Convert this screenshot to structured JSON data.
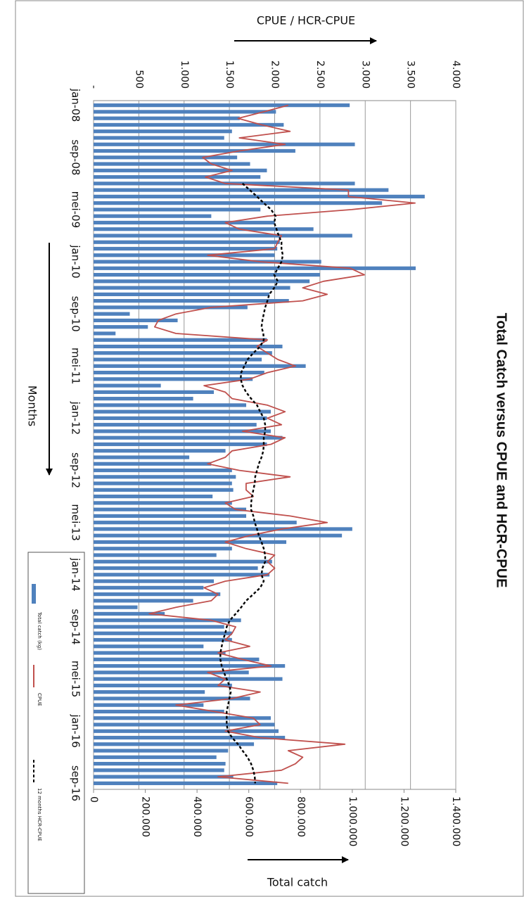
{
  "chart_data": {
    "type": "bar",
    "orientation": "horizontal",
    "title": "Total Catch versus CPUE and HCR-CPUE",
    "x_label": "Months",
    "y_label": "Total catch",
    "y2_label": "CPUE / HCR-CPUE",
    "categories": [
      "jan-08",
      null,
      null,
      null,
      null,
      null,
      null,
      null,
      "sep-08",
      null,
      null,
      null,
      null,
      null,
      null,
      null,
      "mei-09",
      null,
      null,
      null,
      null,
      null,
      null,
      null,
      "jan-10",
      null,
      null,
      null,
      null,
      null,
      null,
      null,
      "sep-10",
      null,
      null,
      null,
      null,
      null,
      null,
      null,
      "mei-11",
      null,
      null,
      null,
      null,
      null,
      null,
      null,
      "jan-12",
      null,
      null,
      null,
      null,
      null,
      null,
      null,
      "sep-12",
      null,
      null,
      null,
      null,
      null,
      null,
      null,
      "mei-13",
      null,
      null,
      null,
      null,
      null,
      null,
      null,
      "jan-14",
      null,
      null,
      null,
      null,
      null,
      null,
      null,
      "sep-14",
      null,
      null,
      null,
      null,
      null,
      null,
      null,
      "mei-15",
      null,
      null,
      null,
      null,
      null,
      null,
      null,
      "jan-16",
      null,
      null,
      null,
      null,
      null,
      null,
      null,
      "sep-16"
    ],
    "ylim": [
      0,
      1400000
    ],
    "yticks": [
      0,
      {
        "value": 200000,
        "label": "200.000"
      },
      {
        "value": 400000,
        "label": "400.000"
      },
      {
        "value": 600000,
        "label": "600.000"
      },
      {
        "value": 800000,
        "label": "800.000"
      },
      {
        "value": 1000000,
        "label": "1.000.000"
      },
      {
        "value": 1200000,
        "label": "1.200.000"
      },
      {
        "value": 1400000,
        "label": "1.400.000"
      }
    ],
    "y2lim": [
      0,
      4000
    ],
    "y2ticks": [
      {
        "value": 0,
        "label": "-"
      },
      500,
      {
        "value": 1000,
        "label": "1.000"
      },
      {
        "value": 1500,
        "label": "1.500"
      },
      {
        "value": 2000,
        "label": "2.000"
      },
      {
        "value": 2500,
        "label": "2.500"
      },
      {
        "value": 3000,
        "label": "3.000"
      },
      {
        "value": 3500,
        "label": "3.500"
      },
      {
        "value": 4000,
        "label": "4.000"
      }
    ],
    "grid": true,
    "legend": "bottom-left",
    "series": [
      {
        "name": "Total catch (kg)",
        "type": "bar",
        "color": "#4f81bd",
        "values": [
          990000,
          705000,
          565000,
          735000,
          535000,
          505000,
          1010000,
          780000,
          555000,
          605000,
          670000,
          645000,
          1010000,
          1140000,
          1280000,
          1115000,
          645000,
          455000,
          700000,
          850000,
          1000000,
          720000,
          710000,
          700000,
          880000,
          1245000,
          875000,
          835000,
          760000,
          680000,
          755000,
          595000,
          140000,
          325000,
          210000,
          85000,
          670000,
          730000,
          690000,
          650000,
          820000,
          660000,
          615000,
          260000,
          465000,
          385000,
          590000,
          685000,
          670000,
          630000,
          685000,
          730000,
          670000,
          510000,
          370000,
          455000,
          535000,
          550000,
          535000,
          540000,
          460000,
          535000,
          590000,
          590000,
          785000,
          1000000,
          960000,
          745000,
          535000,
          475000,
          690000,
          635000,
          680000,
          465000,
          425000,
          490000,
          385000,
          170000,
          275000,
          570000,
          505000,
          535000,
          535000,
          425000,
          510000,
          640000,
          740000,
          600000,
          730000,
          535000,
          430000,
          605000,
          425000,
          505000,
          685000,
          700000,
          715000,
          740000,
          620000,
          520000,
          475000,
          510000,
          505000,
          540000,
          710000
        ]
      },
      {
        "name": "CPUE",
        "type": "line",
        "axis": "y2",
        "color": "#c0504d",
        "values": [
          2150,
          1880,
          1595,
          1855,
          2170,
          1610,
          2115,
          1610,
          1205,
          1300,
          1530,
          1235,
          1455,
          2815,
          2815,
          3550,
          2850,
          1920,
          1455,
          1610,
          2075,
          2035,
          2000,
          1260,
          1840,
          2835,
          2990,
          2540,
          2310,
          2580,
          2310,
          1300,
          910,
          715,
          675,
          910,
          1920,
          1805,
          1920,
          2035,
          2230,
          1920,
          1725,
          1220,
          1455,
          1530,
          1920,
          2115,
          1920,
          2075,
          1645,
          2115,
          1960,
          1530,
          1455,
          1260,
          1610,
          2170,
          1685,
          1685,
          1765,
          1455,
          1570,
          2170,
          2580,
          2075,
          1725,
          1455,
          1685,
          2000,
          1920,
          2000,
          1920,
          1455,
          1220,
          1375,
          1300,
          910,
          615,
          1300,
          1570,
          1530,
          1455,
          1725,
          1375,
          1645,
          1960,
          1260,
          1455,
          1375,
          1840,
          1530,
          910,
          1335,
          1765,
          1840,
          1455,
          1840,
          2775,
          2150,
          2310,
          2230,
          2075,
          1375,
          2150
        ]
      },
      {
        "name": "12 months HCR-CPUE",
        "type": "line",
        "axis": "y2",
        "color": "#000000",
        "dashed": true,
        "values": [
          null,
          null,
          null,
          null,
          null,
          null,
          null,
          null,
          null,
          null,
          null,
          null,
          1645,
          1725,
          1805,
          1880,
          1960,
          2010,
          1995,
          2020,
          2045,
          2075,
          2075,
          2090,
          2075,
          2035,
          1995,
          2035,
          1995,
          1940,
          1920,
          1895,
          1880,
          1865,
          1855,
          1875,
          1880,
          1840,
          1765,
          1700,
          1665,
          1630,
          1625,
          1645,
          1685,
          1740,
          1805,
          1840,
          1880,
          1895,
          1895,
          1880,
          1880,
          1875,
          1855,
          1825,
          1805,
          1785,
          1780,
          1765,
          1750,
          1740,
          1740,
          1765,
          1780,
          1805,
          1825,
          1855,
          1880,
          1895,
          1895,
          1865,
          1855,
          1880,
          1840,
          1765,
          1685,
          1630,
          1570,
          1505,
          1470,
          1455,
          1430,
          1415,
          1400,
          1400,
          1415,
          1440,
          1470,
          1500,
          1515,
          1500,
          1485,
          1470,
          1470,
          1470,
          1485,
          1530,
          1595,
          1645,
          1700,
          1740,
          1765,
          1780,
          1785
        ]
      }
    ]
  }
}
